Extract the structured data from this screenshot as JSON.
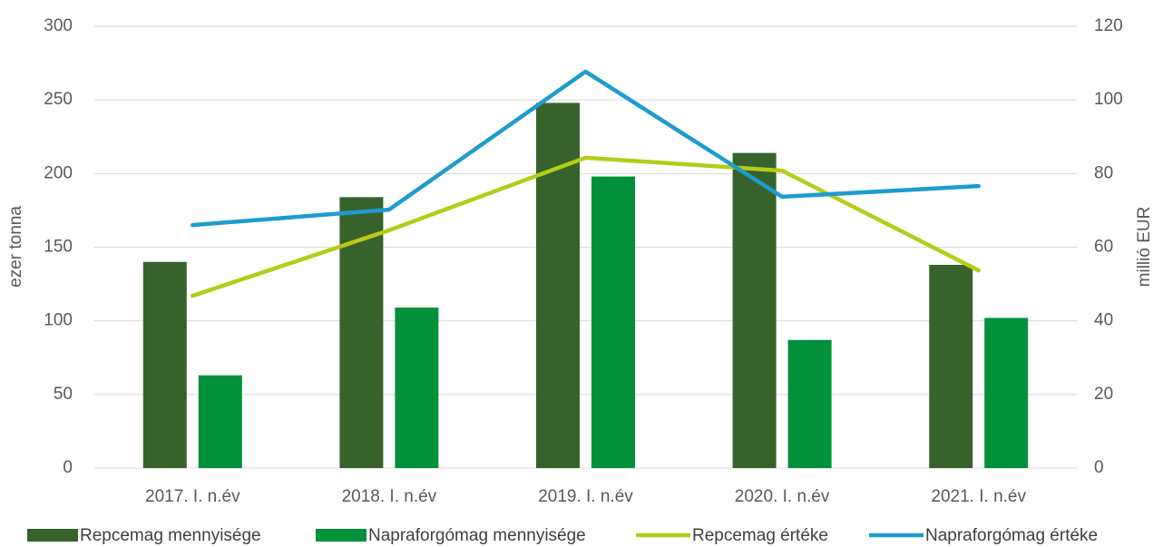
{
  "chart_data": {
    "type": "bar",
    "categories": [
      "2017. I. n.év",
      "2018. I. n.év",
      "2019. I. n.év",
      "2020. I. n.év",
      "2021. I. n.év"
    ],
    "series": [
      {
        "name": "Repcemag mennyisége",
        "type": "bar",
        "color": "#37622c",
        "values": [
          140,
          184,
          248,
          214,
          138
        ]
      },
      {
        "name": "Napraforgómag mennyisége",
        "type": "bar",
        "color": "#00913a",
        "values": [
          63,
          109,
          198,
          87,
          102
        ]
      },
      {
        "name": "Repcemag értéke",
        "type": "line",
        "axis": "y2",
        "color": "#b5cc18",
        "values": [
          46.8,
          64.6,
          84.3,
          80.8,
          53.7
        ]
      },
      {
        "name": "Napraforgómag értéke",
        "type": "line",
        "axis": "y2",
        "color": "#1f9bd0",
        "values": [
          66,
          70.2,
          107.7,
          73.7,
          76.6
        ]
      }
    ],
    "y_label": "ezer tonna",
    "y2_label": "millió EUR",
    "ylim": [
      0,
      300
    ],
    "yticks": [
      0,
      50,
      100,
      150,
      200,
      250,
      300
    ],
    "y2lim": [
      0,
      120
    ],
    "y2ticks": [
      0,
      20,
      40,
      60,
      80,
      100,
      120
    ],
    "grid": true,
    "legend": "bottom"
  }
}
